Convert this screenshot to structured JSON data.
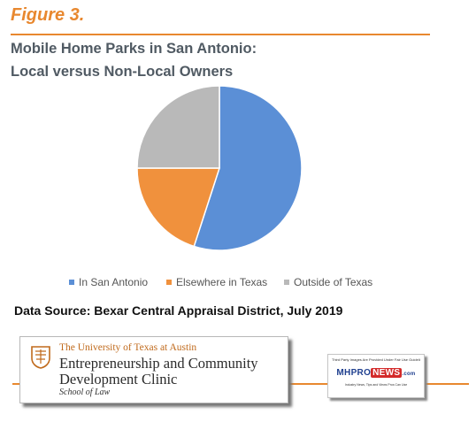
{
  "figure_label": "Figure 3.",
  "title_line1": "Mobile Home Parks in San Antonio:",
  "title_line2": "Local versus Non-Local Owners",
  "source": "Data Source: Bexar Central Appraisal District, July 2019",
  "chart_data": {
    "type": "pie",
    "title": "Mobile Home Parks in San Antonio: Local versus Non-Local Owners",
    "categories": [
      "In San Antonio",
      "Elsewhere in Texas",
      "Outside of Texas"
    ],
    "values": [
      55,
      20,
      25
    ],
    "colors": [
      "#5b8fd6",
      "#f0913d",
      "#b9b9b9"
    ],
    "legend_position": "bottom"
  },
  "logo": {
    "university": "The University of Texas at Austin",
    "clinic_line1": "Entrepreneurship and Community",
    "clinic_line2": "Development Clinic",
    "school": "School of Law",
    "seal_icon": "ut-seal-icon"
  },
  "mhpronews": {
    "top_text": "Third Party Images Are Provided Under Fair Use Guidelines.",
    "mh": "MH",
    "pro": "PRO",
    "news": "NEWS",
    "com": ".com",
    "tagline": "Industry News, Tips and Views Pros Can Use"
  }
}
